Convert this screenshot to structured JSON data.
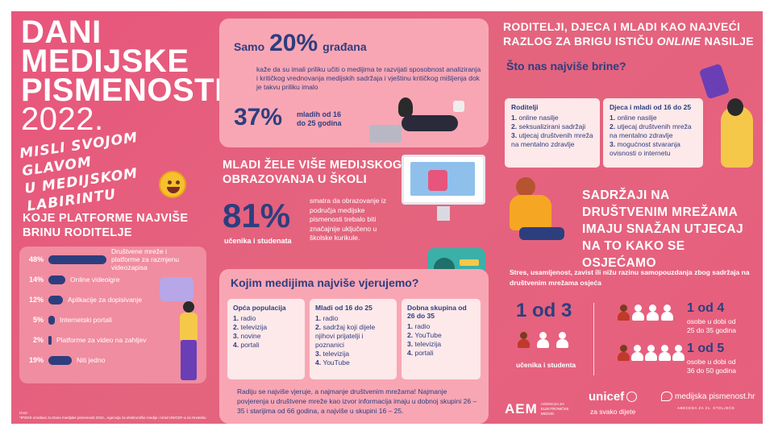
{
  "title": {
    "line1": "DANI",
    "line2": "MEDIJSKE",
    "line3": "PISMENOSTI",
    "year": "2022."
  },
  "slogan": {
    "line1": "MISLI SVOJOM GLAVOM",
    "line2": "U MEDIJSKOM LABIRINTU"
  },
  "platforms": {
    "title_line1": "KOJE PLATFORME NAJVIŠE",
    "title_line2": "BRINU RODITELJE",
    "items": [
      {
        "pct": "48%",
        "value": 48,
        "label": "Društvene mreže i platforme za razmjenu videozapisa"
      },
      {
        "pct": "14%",
        "value": 14,
        "label": "Online videoigre"
      },
      {
        "pct": "12%",
        "value": 12,
        "label": "Aplikacije za dopisivanje"
      },
      {
        "pct": "5%",
        "value": 5,
        "label": "Internetski portali"
      },
      {
        "pct": "2%",
        "value": 2,
        "label": "Platforme za video na zahtjev"
      },
      {
        "pct": "19%",
        "value": 19,
        "label": "Niti jedno"
      }
    ]
  },
  "twenty": {
    "prefix": "Samo",
    "big": "20%",
    "suffix": "građana",
    "text": "kaže da su imali priliku učiti o medijima te razvijati sposobnost analiziranja i kritičkog vrednovanja medijskih sadržaja i vještinu kritičkog mišljenja dok je takvu priliku imalo",
    "big2": "37%",
    "sub2_line1": "mladih od 16",
    "sub2_line2": "do 25 godina"
  },
  "education": {
    "title_line1": "MLADI ŽELE VIŠE MEDIJSKOG",
    "title_line2": "OBRAZOVANJA U ŠKOLI",
    "big": "81%",
    "sub": "učenika i studenata",
    "text": "smatra da obrazovanje iz područja medijske pismenosti trebalo biti značajnije uključeno u školske kurikule."
  },
  "trust": {
    "title": "Kojim medijima najviše vjerujemo?",
    "columns": [
      {
        "heading": "Opća populacija",
        "items": [
          "radio",
          "televizija",
          "novine",
          "portali"
        ]
      },
      {
        "heading": "Mladi od 16 do 25",
        "items": [
          "radio",
          "sadržaj koji dijele njihovi prijatelji i poznanici",
          "televizija",
          "YouTube"
        ]
      },
      {
        "heading": "Dobna skupina od 26 do 35",
        "items": [
          "radio",
          "YouTube",
          "televizija",
          "portali"
        ]
      }
    ],
    "footer": "Radiju se najviše vjeruje, a najmanje društvenim mrežama! Najmanje povjerenja u društvene mreže kao izvor informacija imaju u dobnoj skupini 26 – 35 i starijima od 66 godina, a najviše u skupini 16 – 25."
  },
  "worries": {
    "head_line1": "RODITELJI, DJECA I MLADI KAO NAJVEĆI",
    "head_line2_a": "RAZLOG ZA BRIGU ISTIČU",
    "head_line2_em": "ONLINE",
    "head_line2_b": "NASILJE",
    "question": "Što nas najviše brine?",
    "columns": [
      {
        "heading": "Roditelji",
        "items": [
          "online nasilje",
          "seksualizirani sadržaji",
          "utjecaj društvenih mreža na mentalno zdravlje"
        ]
      },
      {
        "heading": "Djeca i mladi od 16 do 25",
        "items": [
          "online nasilje",
          "utjecaj društvenih mreža na mentalno zdravlje",
          "mogućnost stvaranja ovisnosti o internetu"
        ]
      }
    ]
  },
  "social": {
    "title_line1": "SADRŽAJI NA",
    "title_line2": "DRUŠTVENIM MREŽAMA",
    "title_line3": "IMAJU SNAŽAN UTJECAJ",
    "title_line4": "NA TO KAKO SE OSJEĆAMO",
    "text": "Stres, usamljenost, zavist ili nižu razinu samopouzdanja zbog sadržaja na društvenim mrežama osjeća",
    "stat1_big": "1 od 3",
    "stat1_sub": "učenika i studenta",
    "stat2_big": "1 od 4",
    "stat2_sub_line1": "osobe u dobi od",
    "stat2_sub_line2": "25 do 35 godina",
    "stat3_big": "1 od 5",
    "stat3_sub_line1": "osobe u dobi od",
    "stat3_sub_line2": "36 do 50 godina"
  },
  "footer": {
    "source_label": "Izvor:",
    "source_text": "*IPSOS omnibus za Dane medijske pismenosti 2022., Agencija za elektroničke medije i Ured UNICEF-a za Hrvatsku"
  },
  "logos": {
    "aem": "AEM",
    "aem_sub": "AGENCIJA ZA ELEKTRONIČKE MEDIJE",
    "unicef": "unicef",
    "unicef_sub": "za svako dijete",
    "mp": "medijska pismenost.hr",
    "mp_sub": "ABECEDA ZA 21. STOLJEĆE"
  },
  "colors": {
    "background": "#e75f7e",
    "navy": "#2d3e7f",
    "card": "#f9a6b4",
    "card_pale": "#fde8ea"
  }
}
